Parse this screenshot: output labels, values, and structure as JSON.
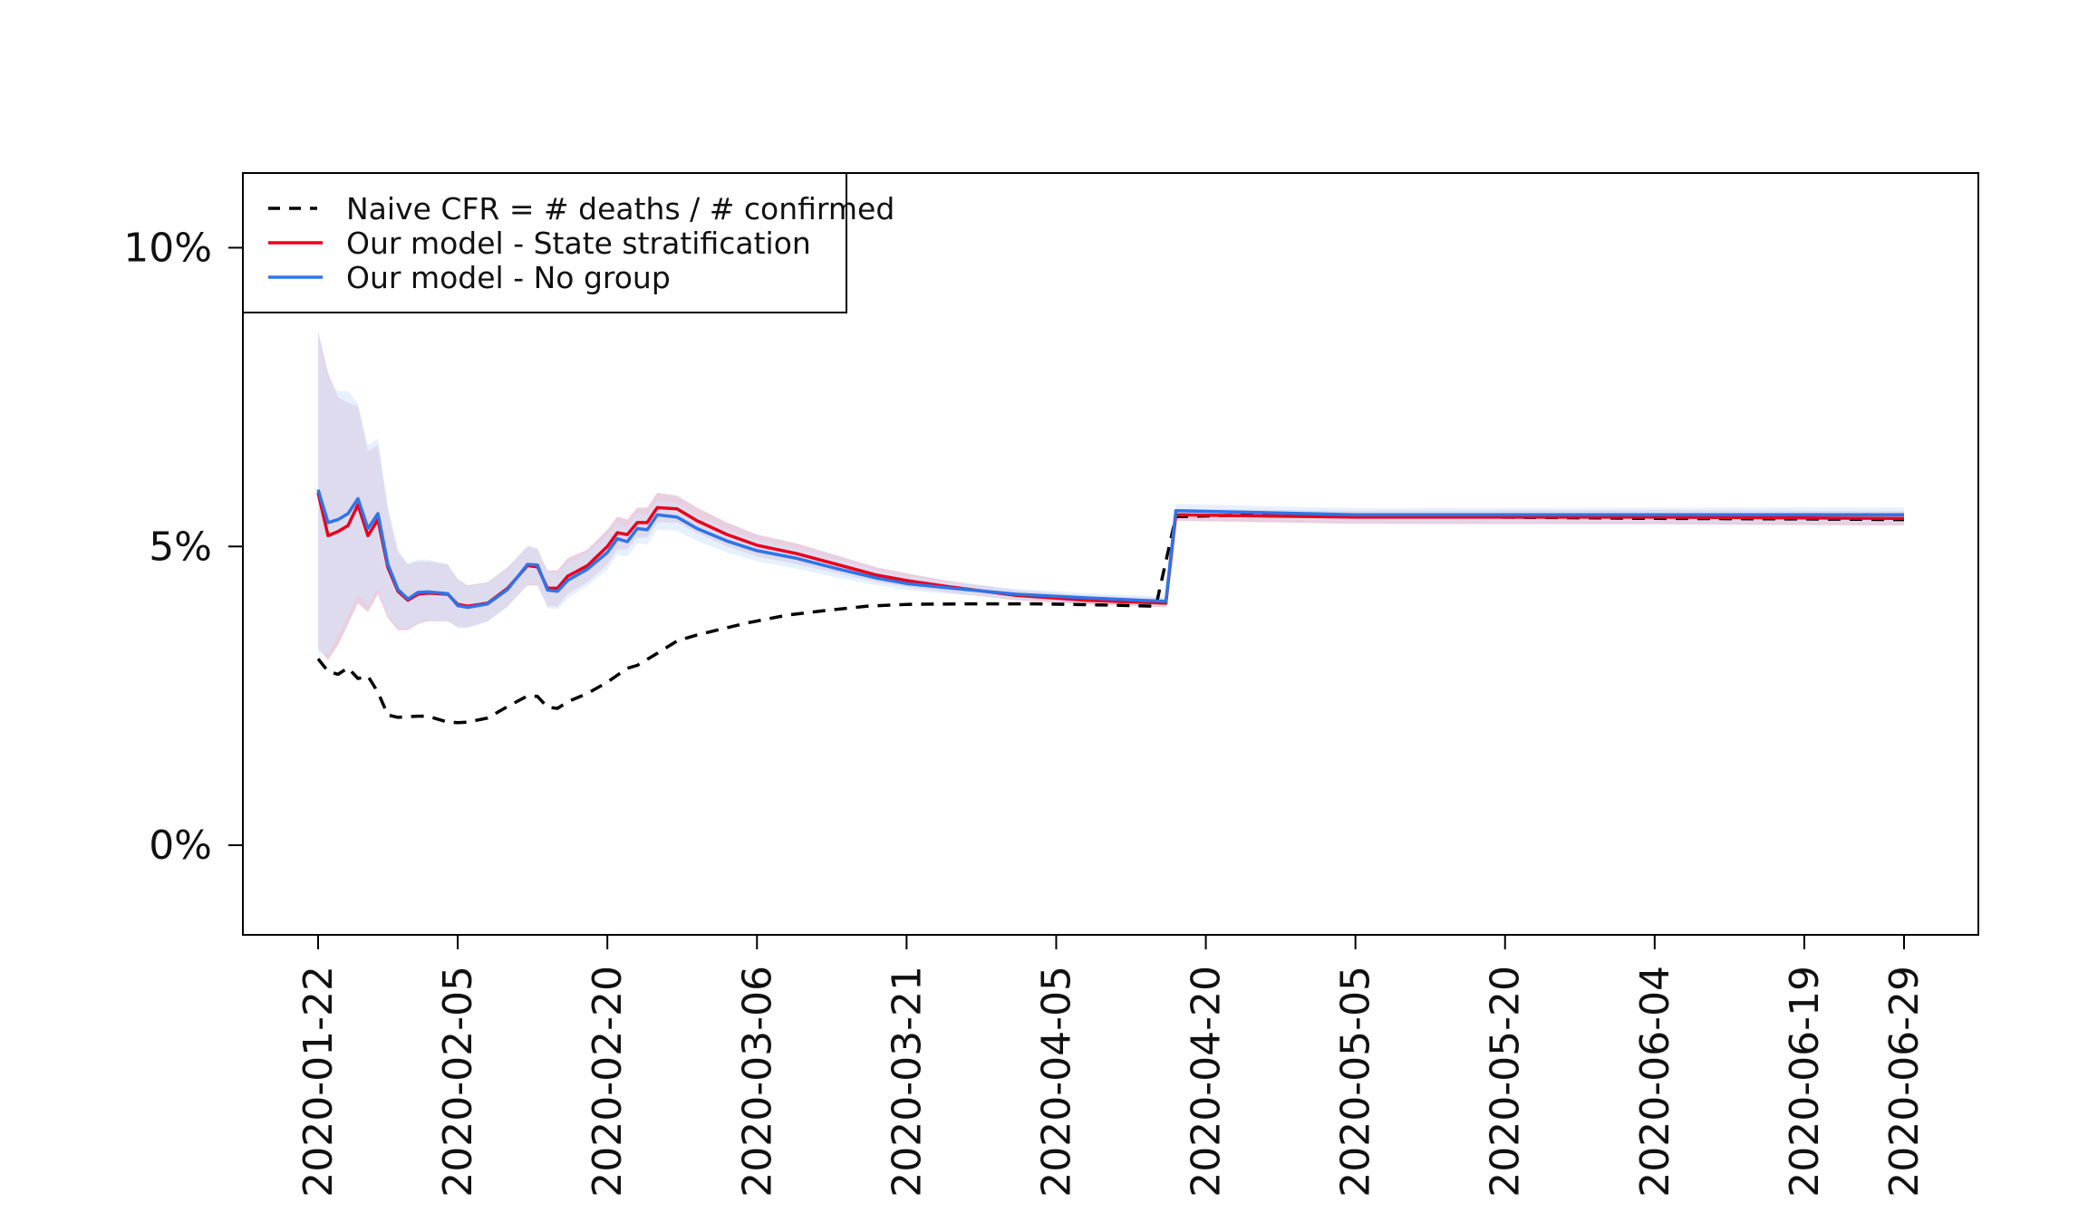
{
  "chart_data": {
    "type": "line",
    "title": "",
    "xlabel": "",
    "ylabel": "",
    "x_type": "date",
    "x_range": [
      "2020-01-22",
      "2020-06-29"
    ],
    "ylim": [
      -0.015,
      0.1125
    ],
    "y_ticks": [
      {
        "value": 0.0,
        "label": "0%"
      },
      {
        "value": 0.05,
        "label": "5%"
      },
      {
        "value": 0.1,
        "label": "10%"
      }
    ],
    "x_ticks": [
      "2020-01-22",
      "2020-02-05",
      "2020-02-20",
      "2020-03-06",
      "2020-03-21",
      "2020-04-05",
      "2020-04-20",
      "2020-05-05",
      "2020-05-20",
      "2020-06-04",
      "2020-06-19",
      "2020-06-29"
    ],
    "grid": false,
    "legend_position": "top-left",
    "legend": [
      {
        "label": "Naive CFR = # deaths / # confirmed",
        "color": "#000000",
        "style": "dashed"
      },
      {
        "label": "Our model - State stratification",
        "color": "#e8001c",
        "style": "solid"
      },
      {
        "label": "Our model - No group",
        "color": "#2f74e8",
        "style": "solid"
      }
    ],
    "series": [
      {
        "color": "#000000",
        "style": "dashed",
        "points": [
          [
            "2020-01-22",
            0.0312
          ],
          [
            "2020-01-23",
            0.0291
          ],
          [
            "2020-01-24",
            0.0286
          ],
          [
            "2020-01-25",
            0.0297
          ],
          [
            "2020-01-26",
            0.0279
          ],
          [
            "2020-01-27",
            0.0283
          ],
          [
            "2020-01-28",
            0.0256
          ],
          [
            "2020-01-29",
            0.0218
          ],
          [
            "2020-01-30",
            0.0214
          ],
          [
            "2020-01-31",
            0.0215
          ],
          [
            "2020-02-01",
            0.0216
          ],
          [
            "2020-02-02",
            0.0216
          ],
          [
            "2020-02-03",
            0.0211
          ],
          [
            "2020-02-04",
            0.0206
          ],
          [
            "2020-02-05",
            0.0205
          ],
          [
            "2020-02-06",
            0.0206
          ],
          [
            "2020-02-08",
            0.0213
          ],
          [
            "2020-02-10",
            0.0232
          ],
          [
            "2020-02-12",
            0.025
          ],
          [
            "2020-02-13",
            0.0249
          ],
          [
            "2020-02-14",
            0.0231
          ],
          [
            "2020-02-15",
            0.0229
          ],
          [
            "2020-02-16",
            0.024
          ],
          [
            "2020-02-18",
            0.0254
          ],
          [
            "2020-02-20",
            0.0273
          ],
          [
            "2020-02-22",
            0.0296
          ],
          [
            "2020-02-23",
            0.0301
          ],
          [
            "2020-02-25",
            0.0321
          ],
          [
            "2020-02-27",
            0.0342
          ],
          [
            "2020-02-29",
            0.0352
          ],
          [
            "2020-03-02",
            0.036
          ],
          [
            "2020-03-05",
            0.0372
          ],
          [
            "2020-03-09",
            0.0385
          ],
          [
            "2020-03-13",
            0.0393
          ],
          [
            "2020-03-17",
            0.04
          ],
          [
            "2020-03-21",
            0.0403
          ],
          [
            "2020-03-27",
            0.0404
          ],
          [
            "2020-04-03",
            0.0404
          ],
          [
            "2020-04-10",
            0.0402
          ],
          [
            "2020-04-15",
            0.04
          ],
          [
            "2020-04-17",
            0.055
          ],
          [
            "2020-04-25",
            0.0553
          ],
          [
            "2020-05-05",
            0.0551
          ],
          [
            "2020-05-20",
            0.0549
          ],
          [
            "2020-06-04",
            0.0547
          ],
          [
            "2020-06-19",
            0.0546
          ],
          [
            "2020-06-29",
            0.0545
          ]
        ]
      },
      {
        "color": "#e8001c",
        "style": "solid",
        "band_color": "#d9a8c6",
        "points": [
          [
            "2020-01-22",
            0.059,
            0.033,
            0.086
          ],
          [
            "2020-01-23",
            0.0518,
            0.031,
            0.079
          ],
          [
            "2020-01-24",
            0.0525,
            0.0335,
            0.075
          ],
          [
            "2020-01-25",
            0.0535,
            0.037,
            0.074
          ],
          [
            "2020-01-26",
            0.057,
            0.0405,
            0.0735
          ],
          [
            "2020-01-27",
            0.0518,
            0.039,
            0.066
          ],
          [
            "2020-01-28",
            0.0545,
            0.042,
            0.067
          ],
          [
            "2020-01-29",
            0.0465,
            0.038,
            0.056
          ],
          [
            "2020-01-30",
            0.0425,
            0.036,
            0.049
          ],
          [
            "2020-01-31",
            0.041,
            0.036,
            0.047
          ],
          [
            "2020-02-01",
            0.042,
            0.037,
            0.0475
          ],
          [
            "2020-02-02",
            0.0422,
            0.0375,
            0.0475
          ],
          [
            "2020-02-04",
            0.042,
            0.0375,
            0.047
          ],
          [
            "2020-02-05",
            0.0403,
            0.0365,
            0.0445
          ],
          [
            "2020-02-06",
            0.04,
            0.0365,
            0.0435
          ],
          [
            "2020-02-08",
            0.0405,
            0.0375,
            0.044
          ],
          [
            "2020-02-10",
            0.043,
            0.04,
            0.0465
          ],
          [
            "2020-02-12",
            0.0468,
            0.0435,
            0.05
          ],
          [
            "2020-02-13",
            0.0466,
            0.0435,
            0.0495
          ],
          [
            "2020-02-14",
            0.043,
            0.04,
            0.046
          ],
          [
            "2020-02-15",
            0.043,
            0.04,
            0.046
          ],
          [
            "2020-02-16",
            0.045,
            0.042,
            0.048
          ],
          [
            "2020-02-18",
            0.0468,
            0.044,
            0.0495
          ],
          [
            "2020-02-20",
            0.05,
            0.047,
            0.0528
          ],
          [
            "2020-02-21",
            0.0523,
            0.0495,
            0.055
          ],
          [
            "2020-02-22",
            0.052,
            0.0495,
            0.0545
          ],
          [
            "2020-02-23",
            0.054,
            0.0515,
            0.0565
          ],
          [
            "2020-02-24",
            0.054,
            0.0515,
            0.0565
          ],
          [
            "2020-02-25",
            0.0565,
            0.054,
            0.059
          ],
          [
            "2020-02-27",
            0.0563,
            0.054,
            0.0585
          ],
          [
            "2020-02-29",
            0.0543,
            0.0522,
            0.0565
          ],
          [
            "2020-03-03",
            0.052,
            0.05,
            0.054
          ],
          [
            "2020-03-06",
            0.0502,
            0.0483,
            0.052
          ],
          [
            "2020-03-10",
            0.0488,
            0.047,
            0.0505
          ],
          [
            "2020-03-14",
            0.047,
            0.0455,
            0.0485
          ],
          [
            "2020-03-18",
            0.0452,
            0.044,
            0.0465
          ],
          [
            "2020-03-21",
            0.0443,
            0.0432,
            0.0455
          ],
          [
            "2020-03-25",
            0.0433,
            0.0423,
            0.0443
          ],
          [
            "2020-04-01",
            0.0418,
            0.041,
            0.0427
          ],
          [
            "2020-04-08",
            0.041,
            0.0403,
            0.0418
          ],
          [
            "2020-04-16",
            0.0405,
            0.0398,
            0.0413
          ],
          [
            "2020-04-17",
            0.0553,
            0.0543,
            0.0563
          ],
          [
            "2020-05-05",
            0.0549,
            0.0538,
            0.056
          ],
          [
            "2020-06-04",
            0.0549,
            0.0537,
            0.0561
          ],
          [
            "2020-06-29",
            0.0547,
            0.0535,
            0.0559
          ]
        ]
      },
      {
        "color": "#2f74e8",
        "style": "solid",
        "band_color": "#d3e6fb",
        "points": [
          [
            "2020-01-22",
            0.0595,
            0.032,
            0.086
          ],
          [
            "2020-01-23",
            0.054,
            0.032,
            0.078
          ],
          [
            "2020-01-24",
            0.0545,
            0.035,
            0.076
          ],
          [
            "2020-01-25",
            0.0555,
            0.0385,
            0.076
          ],
          [
            "2020-01-26",
            0.058,
            0.042,
            0.074
          ],
          [
            "2020-01-27",
            0.053,
            0.04,
            0.067
          ],
          [
            "2020-01-28",
            0.0555,
            0.043,
            0.068
          ],
          [
            "2020-01-29",
            0.047,
            0.0385,
            0.057
          ],
          [
            "2020-01-30",
            0.0428,
            0.0365,
            0.0495
          ],
          [
            "2020-01-31",
            0.0412,
            0.0362,
            0.0472
          ],
          [
            "2020-02-01",
            0.0423,
            0.0373,
            0.0478
          ],
          [
            "2020-02-02",
            0.0424,
            0.0378,
            0.0478
          ],
          [
            "2020-02-04",
            0.0421,
            0.0376,
            0.047
          ],
          [
            "2020-02-05",
            0.0401,
            0.0363,
            0.0443
          ],
          [
            "2020-02-06",
            0.0398,
            0.0363,
            0.0433
          ],
          [
            "2020-02-08",
            0.0404,
            0.0374,
            0.0438
          ],
          [
            "2020-02-10",
            0.0428,
            0.0398,
            0.0463
          ],
          [
            "2020-02-12",
            0.047,
            0.0437,
            0.0502
          ],
          [
            "2020-02-13",
            0.0469,
            0.0438,
            0.0498
          ],
          [
            "2020-02-14",
            0.0427,
            0.0397,
            0.0457
          ],
          [
            "2020-02-15",
            0.0425,
            0.0395,
            0.0455
          ],
          [
            "2020-02-16",
            0.0443,
            0.0413,
            0.0473
          ],
          [
            "2020-02-18",
            0.0462,
            0.0434,
            0.049
          ],
          [
            "2020-02-20",
            0.049,
            0.0462,
            0.0518
          ],
          [
            "2020-02-21",
            0.0513,
            0.0486,
            0.054
          ],
          [
            "2020-02-22",
            0.0508,
            0.0483,
            0.0533
          ],
          [
            "2020-02-23",
            0.053,
            0.0505,
            0.0555
          ],
          [
            "2020-02-24",
            0.0528,
            0.0503,
            0.0553
          ],
          [
            "2020-02-25",
            0.0553,
            0.0528,
            0.0578
          ],
          [
            "2020-02-27",
            0.0549,
            0.0526,
            0.0572
          ],
          [
            "2020-02-29",
            0.053,
            0.0509,
            0.0551
          ],
          [
            "2020-03-03",
            0.0509,
            0.049,
            0.0528
          ],
          [
            "2020-03-06",
            0.0493,
            0.0475,
            0.0511
          ],
          [
            "2020-03-10",
            0.048,
            0.0463,
            0.0497
          ],
          [
            "2020-03-14",
            0.0463,
            0.0448,
            0.0478
          ],
          [
            "2020-03-18",
            0.0447,
            0.0435,
            0.046
          ],
          [
            "2020-03-21",
            0.0438,
            0.0427,
            0.045
          ],
          [
            "2020-03-25",
            0.0431,
            0.0421,
            0.0441
          ],
          [
            "2020-04-01",
            0.042,
            0.0412,
            0.0429
          ],
          [
            "2020-04-08",
            0.0414,
            0.0407,
            0.0422
          ],
          [
            "2020-04-16",
            0.0408,
            0.0401,
            0.0416
          ],
          [
            "2020-04-17",
            0.056,
            0.0549,
            0.0571
          ],
          [
            "2020-05-05",
            0.0553,
            0.0542,
            0.0564
          ],
          [
            "2020-06-04",
            0.0553,
            0.0541,
            0.0565
          ],
          [
            "2020-06-29",
            0.0553,
            0.0541,
            0.0565
          ]
        ]
      }
    ]
  }
}
